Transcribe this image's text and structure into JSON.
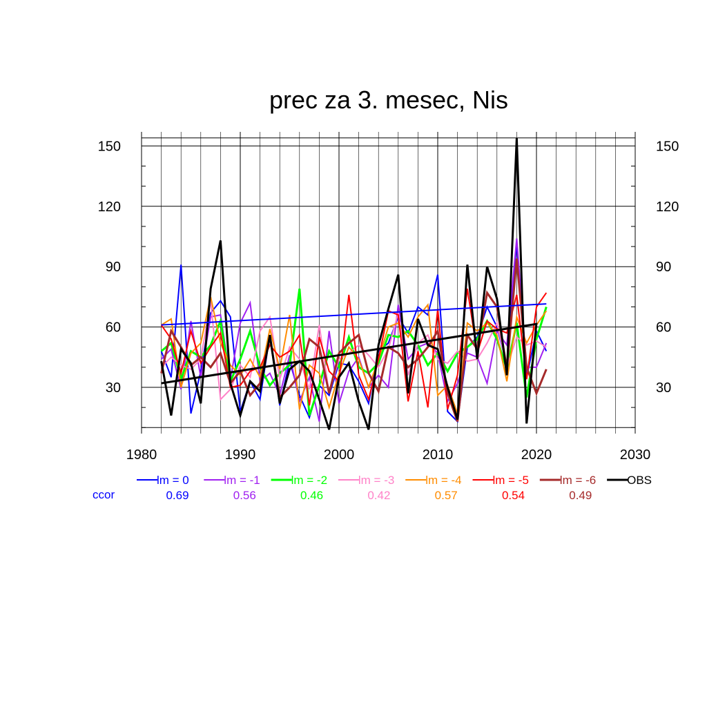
{
  "chart_data": {
    "type": "line",
    "title": "prec za 3. mesec, Nis",
    "xlabel": "",
    "ylabel": "",
    "xlim": [
      1980,
      2030
    ],
    "ylim": [
      7,
      157
    ],
    "x_ticks": [
      "1980",
      "1990",
      "2000",
      "2010",
      "2020",
      "2030"
    ],
    "y_ticks": [
      "30",
      "60",
      "90",
      "120",
      "150"
    ],
    "grid": true,
    "ccor_label": "ccor",
    "x": [
      1982,
      1983,
      1984,
      1985,
      1986,
      1987,
      1988,
      1989,
      1990,
      1991,
      1992,
      1993,
      1994,
      1995,
      1996,
      1997,
      1998,
      1999,
      2000,
      2001,
      2002,
      2003,
      2004,
      2005,
      2006,
      2007,
      2008,
      2009,
      2010,
      2011,
      2012,
      2013,
      2014,
      2015,
      2016,
      2017,
      2018,
      2019,
      2020,
      2021
    ],
    "series": [
      {
        "name": "lm = 0",
        "ccor": "0.69",
        "color": "#0000ff",
        "width": 2,
        "values": [
          48,
          35,
          91,
          17,
          38,
          67,
          73,
          65,
          18,
          33,
          24,
          56,
          21,
          43,
          26,
          15,
          31,
          26,
          42,
          41,
          33,
          22,
          48,
          52,
          65,
          57,
          70,
          66,
          86,
          18,
          13,
          50,
          55,
          70,
          60,
          41,
          102,
          35,
          58,
          48
        ]
      },
      {
        "name": "lm = -1",
        "ccor": "0.56",
        "color": "#a020f0",
        "width": 2,
        "values": [
          44,
          49,
          29,
          63,
          35,
          65,
          66,
          34,
          62,
          72,
          33,
          37,
          26,
          46,
          23,
          35,
          13,
          58,
          22,
          38,
          45,
          30,
          36,
          30,
          71,
          44,
          50,
          52,
          47,
          23,
          32,
          47,
          45,
          32,
          58,
          51,
          104,
          40,
          40,
          52
        ]
      },
      {
        "name": "lm = -2",
        "ccor": "0.46",
        "color": "#00ff00",
        "width": 3,
        "values": [
          48,
          52,
          34,
          48,
          45,
          51,
          63,
          33,
          44,
          58,
          40,
          31,
          37,
          41,
          79,
          16,
          31,
          48,
          40,
          55,
          40,
          37,
          42,
          56,
          55,
          58,
          51,
          41,
          47,
          38,
          47,
          50,
          54,
          63,
          54,
          39,
          62,
          25,
          54,
          70
        ]
      },
      {
        "name": "lm = -3",
        "ccor": "0.42",
        "color": "#ff82c8",
        "width": 2,
        "values": [
          40,
          45,
          41,
          39,
          44,
          73,
          24,
          29,
          41,
          35,
          58,
          65,
          34,
          50,
          44,
          29,
          61,
          27,
          44,
          47,
          51,
          46,
          40,
          49,
          67,
          36,
          52,
          56,
          44,
          42,
          48,
          43,
          44,
          52,
          62,
          40,
          55,
          51,
          53,
          50
        ]
      },
      {
        "name": "lm = -4",
        "ccor": "0.57",
        "color": "#ff8c00",
        "width": 2,
        "values": [
          61,
          64,
          30,
          47,
          52,
          75,
          52,
          41,
          36,
          44,
          35,
          59,
          39,
          66,
          19,
          41,
          37,
          20,
          37,
          50,
          44,
          30,
          44,
          60,
          62,
          55,
          65,
          71,
          26,
          31,
          17,
          62,
          58,
          62,
          56,
          33,
          65,
          52,
          61,
          68
        ]
      },
      {
        "name": "lm = -5",
        "ccor": "0.54",
        "color": "#ff0000",
        "width": 2,
        "values": [
          61,
          54,
          37,
          58,
          42,
          50,
          57,
          30,
          31,
          38,
          40,
          51,
          45,
          48,
          56,
          21,
          55,
          38,
          33,
          76,
          36,
          24,
          44,
          68,
          66,
          23,
          48,
          20,
          69,
          19,
          36,
          79,
          47,
          63,
          59,
          57,
          76,
          34,
          70,
          77
        ]
      },
      {
        "name": "lm = -6",
        "ccor": "0.49",
        "color": "#a52a2a",
        "width": 3,
        "values": [
          37,
          58,
          50,
          41,
          45,
          40,
          47,
          32,
          38,
          26,
          32,
          55,
          25,
          30,
          36,
          54,
          50,
          27,
          47,
          52,
          56,
          37,
          28,
          50,
          47,
          40,
          44,
          50,
          58,
          27,
          13,
          56,
          49,
          77,
          70,
          39,
          94,
          40,
          27,
          39
        ]
      },
      {
        "name": "OBS",
        "ccor": "",
        "color": "#000000",
        "width": 3,
        "values": [
          43,
          16,
          49,
          42,
          22,
          79,
          103,
          32,
          16,
          33,
          28,
          56,
          22,
          39,
          43,
          38,
          24,
          9,
          35,
          42,
          23,
          9,
          51,
          69,
          86,
          27,
          64,
          51,
          49,
          30,
          14,
          91,
          44,
          90,
          74,
          36,
          154,
          12,
          62,
          null
        ]
      }
    ],
    "trend_lines": [
      {
        "name": "lm = 0 trend",
        "color": "#0000ff",
        "width": 2,
        "x": [
          1982,
          2021
        ],
        "values": [
          61,
          71.5
        ]
      },
      {
        "name": "OBS trend",
        "color": "#000000",
        "width": 3,
        "x": [
          1982,
          2020
        ],
        "values": [
          32,
          61.5
        ]
      }
    ]
  }
}
